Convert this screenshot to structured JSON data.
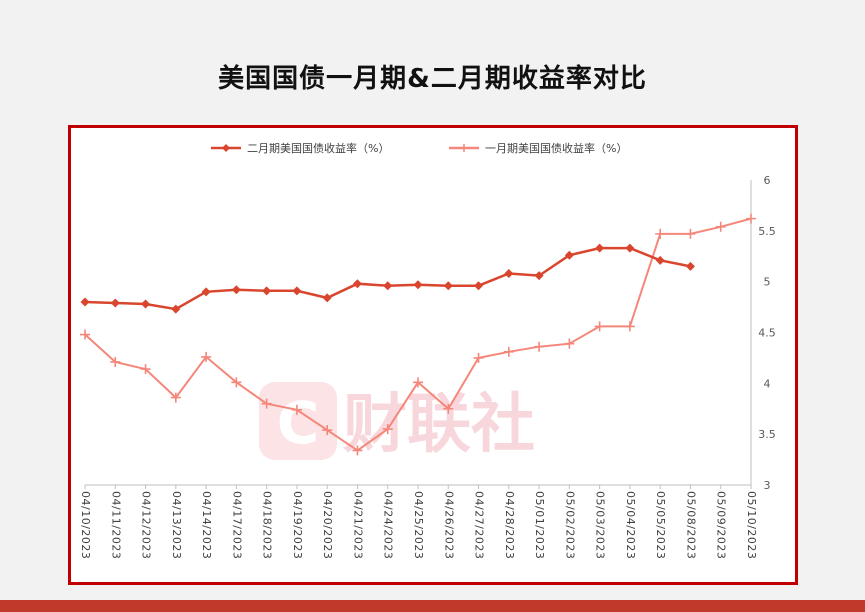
{
  "page": {
    "title": "美国国债一月期&二月期收益率对比"
  },
  "watermark": {
    "text": "财联社",
    "logo_letter": "C"
  },
  "chart_data": {
    "type": "line",
    "title": "美国国债一月期&二月期收益率对比",
    "categories": [
      "04/10/2023",
      "04/11/2023",
      "04/12/2023",
      "04/13/2023",
      "04/14/2023",
      "04/17/2023",
      "04/18/2023",
      "04/19/2023",
      "04/20/2023",
      "04/21/2023",
      "04/24/2023",
      "04/25/2023",
      "04/26/2023",
      "04/27/2023",
      "04/28/2023",
      "05/01/2023",
      "05/02/2023",
      "05/03/2023",
      "05/04/2023",
      "05/05/2023",
      "05/08/2023",
      "05/09/2023",
      "05/10/2023"
    ],
    "series": [
      {
        "name": "二月期美国国债收益率（%）",
        "color": "#d9452d",
        "marker": "diamond",
        "values": [
          4.8,
          4.79,
          4.78,
          4.73,
          4.9,
          4.92,
          4.91,
          4.91,
          4.84,
          4.98,
          4.96,
          4.97,
          4.96,
          4.96,
          5.08,
          5.06,
          5.26,
          5.33,
          5.33,
          5.21,
          5.15,
          null,
          null
        ]
      },
      {
        "name": "一月期美国国债收益率（%）",
        "color": "#f4877a",
        "marker": "plus",
        "values": [
          4.48,
          4.21,
          4.14,
          3.86,
          4.26,
          4.01,
          3.8,
          3.74,
          3.54,
          3.34,
          3.55,
          4.01,
          3.75,
          4.25,
          4.31,
          4.36,
          4.39,
          4.56,
          4.56,
          5.47,
          5.47,
          5.54,
          5.62
        ]
      }
    ],
    "yaxis": {
      "position": "right",
      "min": 3,
      "max": 6,
      "ticks": [
        "3",
        "3.5",
        "4",
        "4.5",
        "5",
        "5.5",
        "6"
      ]
    },
    "grid": false,
    "legend_position": "top"
  }
}
